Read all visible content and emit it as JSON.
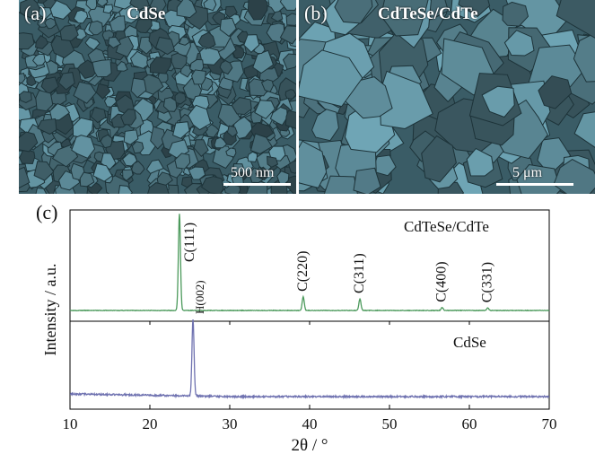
{
  "figure": {
    "panel_a": {
      "label": "(a)",
      "title": "CdSe",
      "scale_bar": "500 nm"
    },
    "panel_b": {
      "label": "(b)",
      "title": "CdTeSe/CdTe",
      "scale_bar": "5 μm"
    },
    "panel_c": {
      "label": "(c)"
    }
  },
  "chart_data": {
    "type": "line",
    "xlabel": "2θ / °",
    "ylabel": "Intensity / a.u.",
    "xlim": [
      10,
      70
    ],
    "xticks": [
      10,
      20,
      30,
      40,
      50,
      60,
      70
    ],
    "series": [
      {
        "name": "CdTeSe/CdTe",
        "color": "#4c9a5c",
        "peaks": [
          {
            "x": 23.7,
            "height": 1.0,
            "label": "C(111)"
          },
          {
            "x": 39.2,
            "height": 0.14,
            "label": "C(220)"
          },
          {
            "x": 46.3,
            "height": 0.12,
            "label": "C(311)"
          },
          {
            "x": 56.6,
            "height": 0.03,
            "label": "C(400)"
          },
          {
            "x": 62.3,
            "height": 0.025,
            "label": "C(331)"
          }
        ]
      },
      {
        "name": "CdSe",
        "color": "#6f72b0",
        "peaks": [
          {
            "x": 25.4,
            "height": 1.0,
            "label": "H(002)"
          }
        ]
      }
    ]
  }
}
